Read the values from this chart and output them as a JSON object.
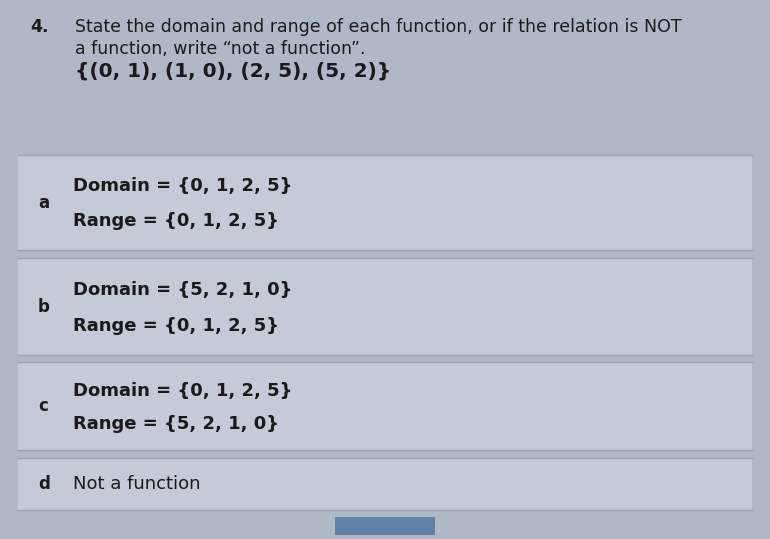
{
  "question_number": "4.",
  "question_line1": "State the domain and range of each function, or if the relation is NOT",
  "question_line2": "a function, write “not a function”.",
  "question_line3": "{(0, 1), (1, 0), (2, 5), (5, 2)}",
  "bg_color": "#b0b8c8",
  "option_bg": "#c4cad6",
  "separator_color": "#9aa3b0",
  "text_color": "#1a1a1a",
  "options": [
    {
      "label": "a",
      "line1": "Domain = {0, 1, 2, 5}",
      "line2": "Range = {0, 1, 2, 5}"
    },
    {
      "label": "b",
      "line1": "Domain = {5, 2, 1, 0}",
      "line2": "Range = {0, 1, 2, 5}"
    },
    {
      "label": "c",
      "line1": "Domain = {0, 1, 2, 5}",
      "line2": "Range = {5, 2, 1, 0}"
    },
    {
      "label": "d",
      "line1": "Not a function",
      "line2": null
    }
  ],
  "btn_color": "#6080a8",
  "question_fontsize": 12.5,
  "question_set_fontsize": 14.5,
  "label_fontsize": 12,
  "body_fontsize": 13
}
